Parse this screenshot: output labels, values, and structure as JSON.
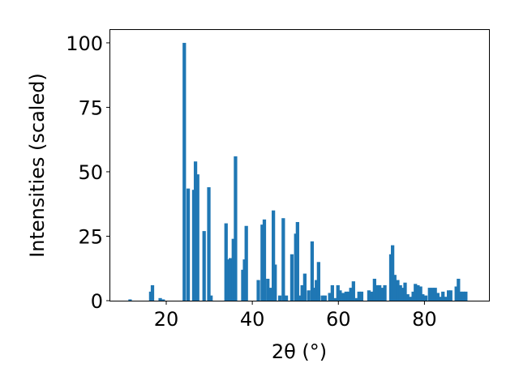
{
  "chart_data": {
    "type": "bar",
    "title": "",
    "xlabel": "2θ (°)",
    "ylabel": "Intensities (scaled)",
    "xlim": [
      7,
      95
    ],
    "ylim": [
      0,
      105
    ],
    "xticks": [
      20,
      40,
      60,
      80
    ],
    "yticks": [
      0,
      25,
      50,
      75,
      100
    ],
    "grid": false,
    "legend": "none",
    "bar_color": "#1f77b4",
    "bar_width_deg": 0.8,
    "bars": [
      {
        "x": 11.6,
        "y": 0.5
      },
      {
        "x": 16.4,
        "y": 3.5
      },
      {
        "x": 16.8,
        "y": 6
      },
      {
        "x": 18.6,
        "y": 1
      },
      {
        "x": 19.3,
        "y": 0.5
      },
      {
        "x": 24.2,
        "y": 100
      },
      {
        "x": 25.1,
        "y": 43.5
      },
      {
        "x": 26.4,
        "y": 43
      },
      {
        "x": 26.8,
        "y": 54
      },
      {
        "x": 27.3,
        "y": 49
      },
      {
        "x": 28.8,
        "y": 27
      },
      {
        "x": 29.9,
        "y": 44
      },
      {
        "x": 30.4,
        "y": 2
      },
      {
        "x": 33.9,
        "y": 30
      },
      {
        "x": 34.4,
        "y": 16
      },
      {
        "x": 34.9,
        "y": 16.5
      },
      {
        "x": 35.6,
        "y": 24
      },
      {
        "x": 36.1,
        "y": 56
      },
      {
        "x": 37.8,
        "y": 12
      },
      {
        "x": 38.2,
        "y": 16
      },
      {
        "x": 38.6,
        "y": 29
      },
      {
        "x": 41.4,
        "y": 8
      },
      {
        "x": 42.3,
        "y": 29.5
      },
      {
        "x": 42.8,
        "y": 31.5
      },
      {
        "x": 43.6,
        "y": 8.5
      },
      {
        "x": 44.2,
        "y": 5
      },
      {
        "x": 44.9,
        "y": 35
      },
      {
        "x": 45.3,
        "y": 14
      },
      {
        "x": 46.4,
        "y": 2
      },
      {
        "x": 47.2,
        "y": 32
      },
      {
        "x": 47.9,
        "y": 2
      },
      {
        "x": 49.2,
        "y": 18
      },
      {
        "x": 50.1,
        "y": 26
      },
      {
        "x": 50.5,
        "y": 30.5
      },
      {
        "x": 51.1,
        "y": 2
      },
      {
        "x": 51.6,
        "y": 6
      },
      {
        "x": 52.2,
        "y": 10.5
      },
      {
        "x": 53.1,
        "y": 4
      },
      {
        "x": 53.9,
        "y": 23
      },
      {
        "x": 54.4,
        "y": 5
      },
      {
        "x": 54.9,
        "y": 8
      },
      {
        "x": 55.4,
        "y": 15
      },
      {
        "x": 56.3,
        "y": 2
      },
      {
        "x": 56.9,
        "y": 2
      },
      {
        "x": 58.0,
        "y": 3
      },
      {
        "x": 58.6,
        "y": 6
      },
      {
        "x": 59.3,
        "y": 1
      },
      {
        "x": 59.9,
        "y": 6
      },
      {
        "x": 60.4,
        "y": 4
      },
      {
        "x": 61.2,
        "y": 3
      },
      {
        "x": 61.8,
        "y": 3.5
      },
      {
        "x": 62.4,
        "y": 3.5
      },
      {
        "x": 62.9,
        "y": 5
      },
      {
        "x": 63.5,
        "y": 7.5
      },
      {
        "x": 64.3,
        "y": 1
      },
      {
        "x": 64.8,
        "y": 3.5
      },
      {
        "x": 65.4,
        "y": 3.5
      },
      {
        "x": 67.1,
        "y": 4
      },
      {
        "x": 67.7,
        "y": 3.5
      },
      {
        "x": 68.4,
        "y": 8.5
      },
      {
        "x": 69.0,
        "y": 6
      },
      {
        "x": 69.6,
        "y": 6
      },
      {
        "x": 70.2,
        "y": 5
      },
      {
        "x": 70.8,
        "y": 6
      },
      {
        "x": 72.2,
        "y": 18
      },
      {
        "x": 72.6,
        "y": 21.5
      },
      {
        "x": 73.1,
        "y": 10
      },
      {
        "x": 73.8,
        "y": 8
      },
      {
        "x": 74.4,
        "y": 6
      },
      {
        "x": 74.9,
        "y": 5
      },
      {
        "x": 75.5,
        "y": 7
      },
      {
        "x": 76.1,
        "y": 2.5
      },
      {
        "x": 76.7,
        "y": 1.5
      },
      {
        "x": 77.4,
        "y": 3.5
      },
      {
        "x": 77.9,
        "y": 6.5
      },
      {
        "x": 78.5,
        "y": 6
      },
      {
        "x": 79.1,
        "y": 5.5
      },
      {
        "x": 79.6,
        "y": 2.5
      },
      {
        "x": 80.3,
        "y": 2
      },
      {
        "x": 81.2,
        "y": 5
      },
      {
        "x": 81.9,
        "y": 5
      },
      {
        "x": 82.5,
        "y": 5
      },
      {
        "x": 83.1,
        "y": 3
      },
      {
        "x": 83.8,
        "y": 1.5
      },
      {
        "x": 84.3,
        "y": 3.5
      },
      {
        "x": 84.9,
        "y": 1.5
      },
      {
        "x": 85.6,
        "y": 4
      },
      {
        "x": 86.1,
        "y": 4
      },
      {
        "x": 87.4,
        "y": 5.5
      },
      {
        "x": 87.9,
        "y": 8.5
      },
      {
        "x": 88.4,
        "y": 3.5
      },
      {
        "x": 89.0,
        "y": 3.5
      },
      {
        "x": 89.6,
        "y": 3.5
      }
    ]
  }
}
